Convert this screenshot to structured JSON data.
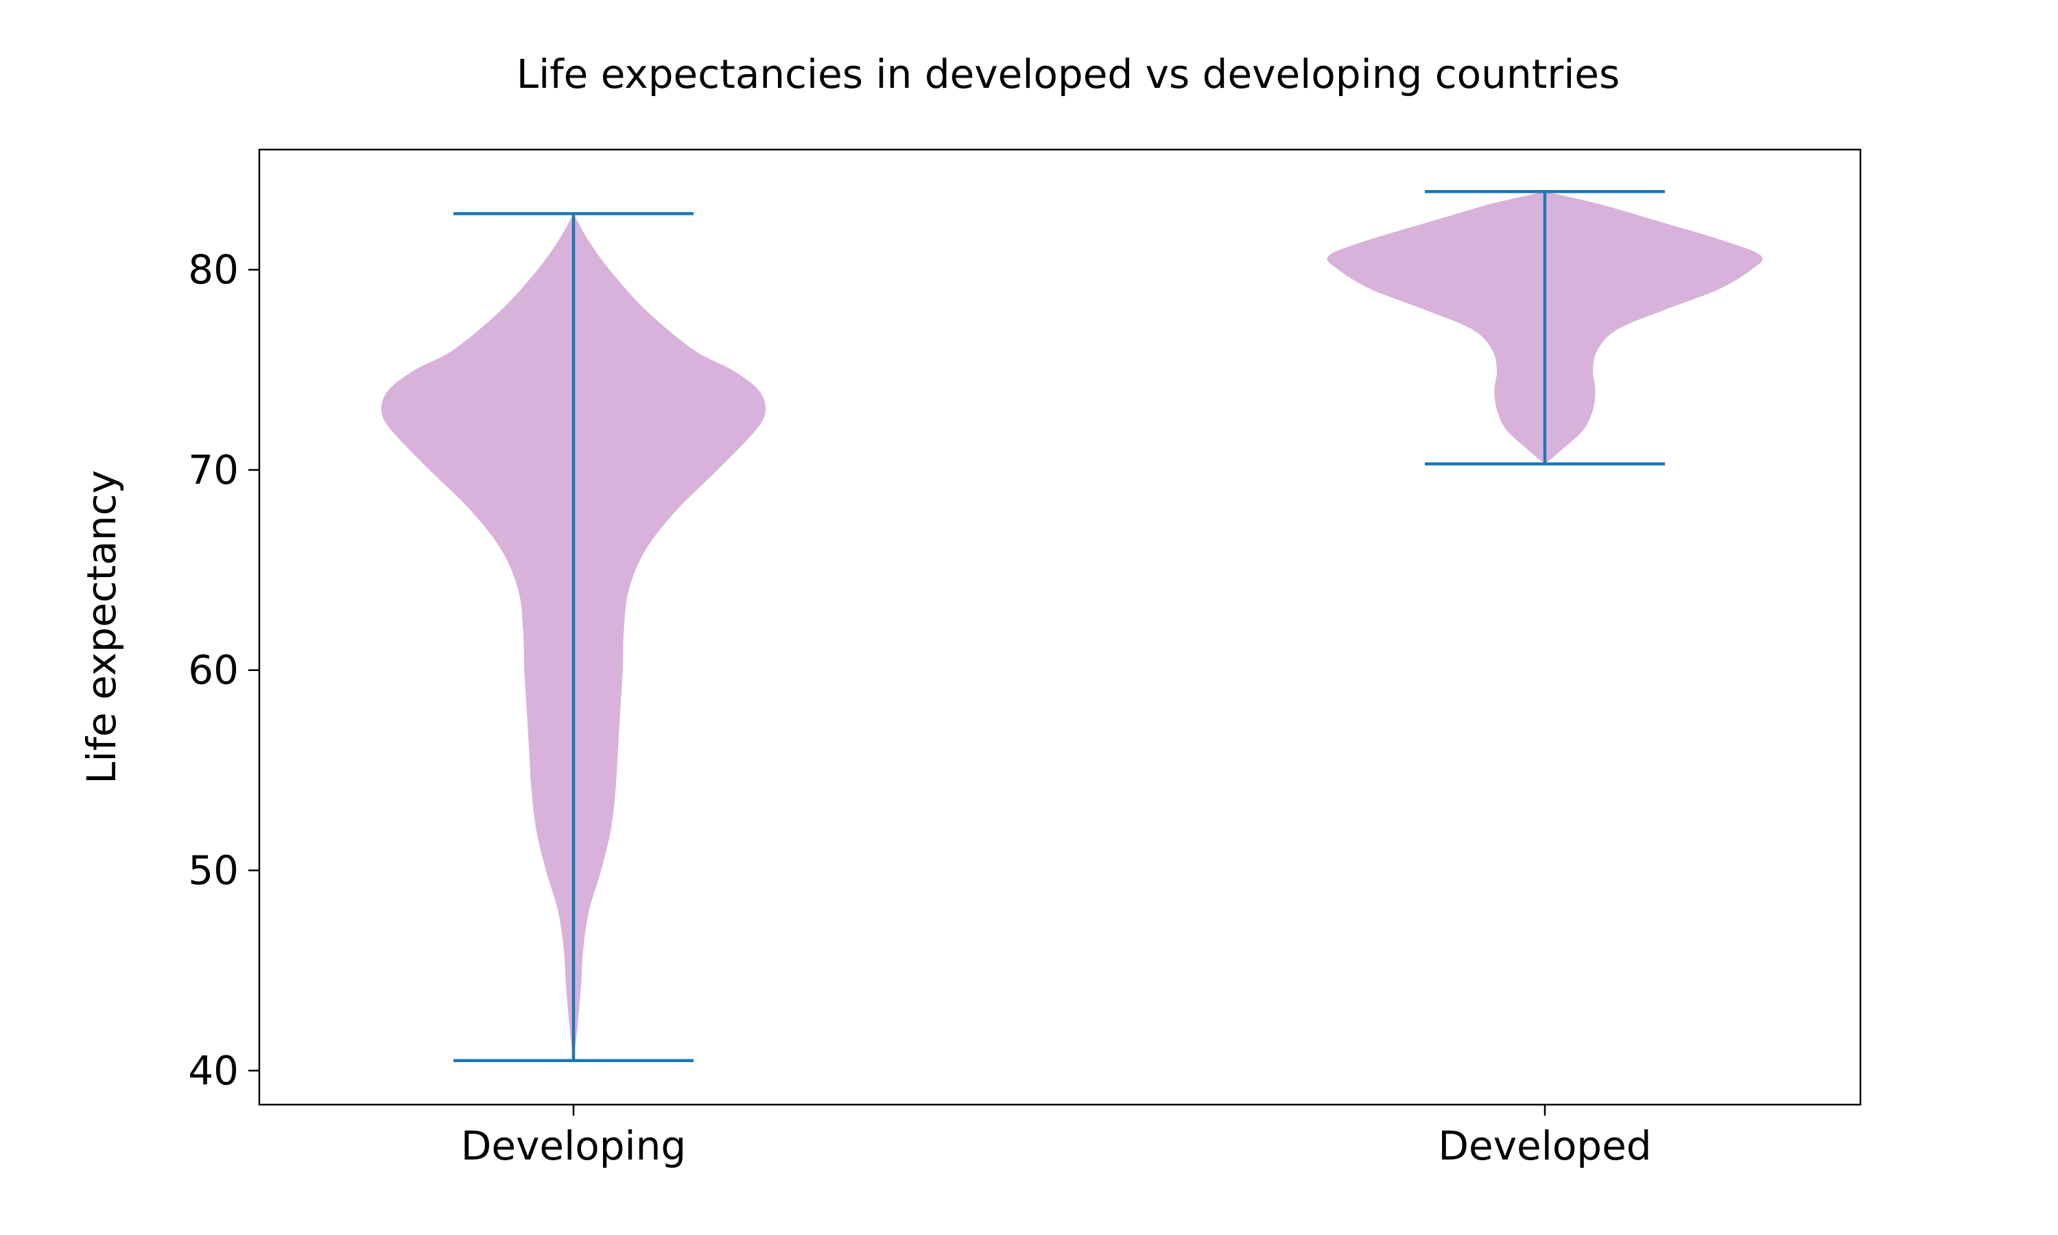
{
  "chart_data": {
    "type": "violin",
    "title": "Life expectancies in developed vs developing countries",
    "xlabel": "",
    "ylabel": "Life expectancy",
    "categories": [
      "Developing",
      "Developed"
    ],
    "ylim": [
      38.3,
      86.0
    ],
    "yticks": [
      40,
      50,
      60,
      70,
      80
    ],
    "grid": false,
    "colors": {
      "body": "#d8b2da",
      "lines": "#1f77b4"
    },
    "violins": [
      {
        "category": "Developing",
        "min": 40.5,
        "max": 82.8,
        "max_width_fraction": 1.0,
        "density": [
          [
            40.5,
            0.0
          ],
          [
            42.0,
            0.015
          ],
          [
            44.0,
            0.03
          ],
          [
            46.0,
            0.04
          ],
          [
            48.0,
            0.065
          ],
          [
            50.0,
            0.115
          ],
          [
            52.0,
            0.155
          ],
          [
            54.0,
            0.175
          ],
          [
            56.0,
            0.185
          ],
          [
            58.0,
            0.195
          ],
          [
            60.0,
            0.205
          ],
          [
            62.0,
            0.21
          ],
          [
            64.0,
            0.23
          ],
          [
            66.0,
            0.3
          ],
          [
            68.0,
            0.43
          ],
          [
            70.0,
            0.6
          ],
          [
            72.0,
            0.76
          ],
          [
            73.0,
            0.8
          ],
          [
            74.0,
            0.77
          ],
          [
            75.0,
            0.66
          ],
          [
            76.0,
            0.5
          ],
          [
            78.0,
            0.3
          ],
          [
            80.0,
            0.15
          ],
          [
            81.5,
            0.06
          ],
          [
            82.8,
            0.0
          ]
        ]
      },
      {
        "category": "Developed",
        "min": 70.3,
        "max": 83.9,
        "max_width_fraction": 1.0,
        "density": [
          [
            70.3,
            0.0
          ],
          [
            71.0,
            0.07
          ],
          [
            72.0,
            0.16
          ],
          [
            73.0,
            0.2
          ],
          [
            74.0,
            0.21
          ],
          [
            75.0,
            0.2
          ],
          [
            76.0,
            0.22
          ],
          [
            77.0,
            0.3
          ],
          [
            78.0,
            0.5
          ],
          [
            79.0,
            0.72
          ],
          [
            80.0,
            0.86
          ],
          [
            80.7,
            0.9
          ],
          [
            81.5,
            0.73
          ],
          [
            82.5,
            0.45
          ],
          [
            83.3,
            0.22
          ],
          [
            83.9,
            0.0
          ]
        ]
      }
    ]
  }
}
